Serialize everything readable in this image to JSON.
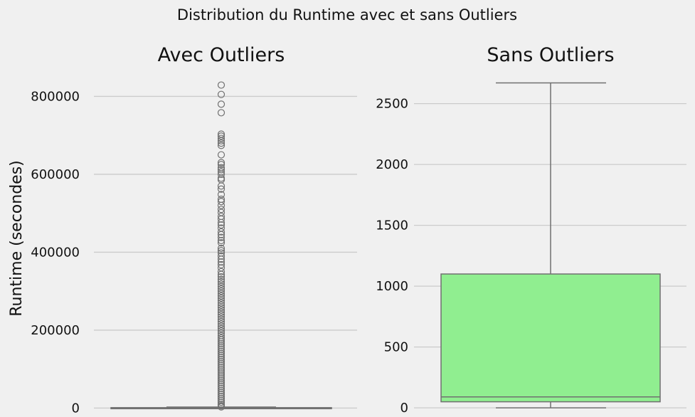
{
  "figure": {
    "suptitle": "Distribution du Runtime avec et sans Outliers"
  },
  "chart_data": [
    {
      "type": "box",
      "title": "Avec Outliers",
      "xlabel": "",
      "ylabel": "Runtime (secondes)",
      "ylim": [
        -12000,
        872000
      ],
      "yticks": [
        0,
        200000,
        400000,
        600000,
        800000
      ],
      "ytick_labels": [
        "0",
        "200000",
        "400000",
        "600000",
        "800000"
      ],
      "grid": true,
      "box": {
        "q1": 50,
        "median": 90,
        "q3": 1100,
        "whisker_low": 0,
        "whisker_high": 2670,
        "color": "#90ee90",
        "edge_color": "#707070"
      },
      "outliers": [
        829000,
        805000,
        780000,
        758000,
        703000,
        698000,
        692000,
        686000,
        680000,
        674000,
        650000,
        630000,
        625000,
        617000,
        612000,
        606000,
        600000,
        590000,
        586000,
        570000,
        562000,
        548000,
        536000,
        530000,
        520000,
        510000,
        502000,
        492000,
        485000,
        476000,
        470000,
        462000,
        452000,
        445000,
        438000,
        430000,
        424000,
        410000,
        404000,
        398000,
        390000,
        382000,
        375000,
        368000,
        360000,
        350000,
        343000,
        337000,
        330000,
        324000,
        318000,
        312000,
        306000,
        300000,
        294000,
        288000,
        282000,
        276000,
        270000,
        264000,
        258000,
        252000,
        246000,
        240000,
        234000,
        228000,
        222000,
        216000,
        210000,
        204000,
        198000,
        192000,
        186000,
        180000,
        175000,
        170000,
        165000,
        160000,
        155000,
        150000,
        145000,
        140000,
        135000,
        130000,
        125000,
        120000,
        115000,
        110000,
        105000,
        100000,
        95000,
        90000,
        85000,
        80000,
        75000,
        70000,
        65000,
        60000,
        55000,
        50000,
        45000,
        40000,
        35000,
        30000,
        25000,
        20000,
        15000,
        10000,
        6000,
        3000
      ]
    },
    {
      "type": "box",
      "title": "Sans Outliers",
      "xlabel": "",
      "ylabel": "",
      "ylim": [
        -40,
        2790
      ],
      "yticks": [
        0,
        500,
        1000,
        1500,
        2000,
        2500
      ],
      "ytick_labels": [
        "0",
        "500",
        "1000",
        "1500",
        "2000",
        "2500"
      ],
      "grid": true,
      "box": {
        "q1": 50,
        "median": 90,
        "q3": 1100,
        "whisker_low": 0,
        "whisker_high": 2670,
        "color": "#90ee90",
        "edge_color": "#707070"
      },
      "outliers": []
    }
  ]
}
